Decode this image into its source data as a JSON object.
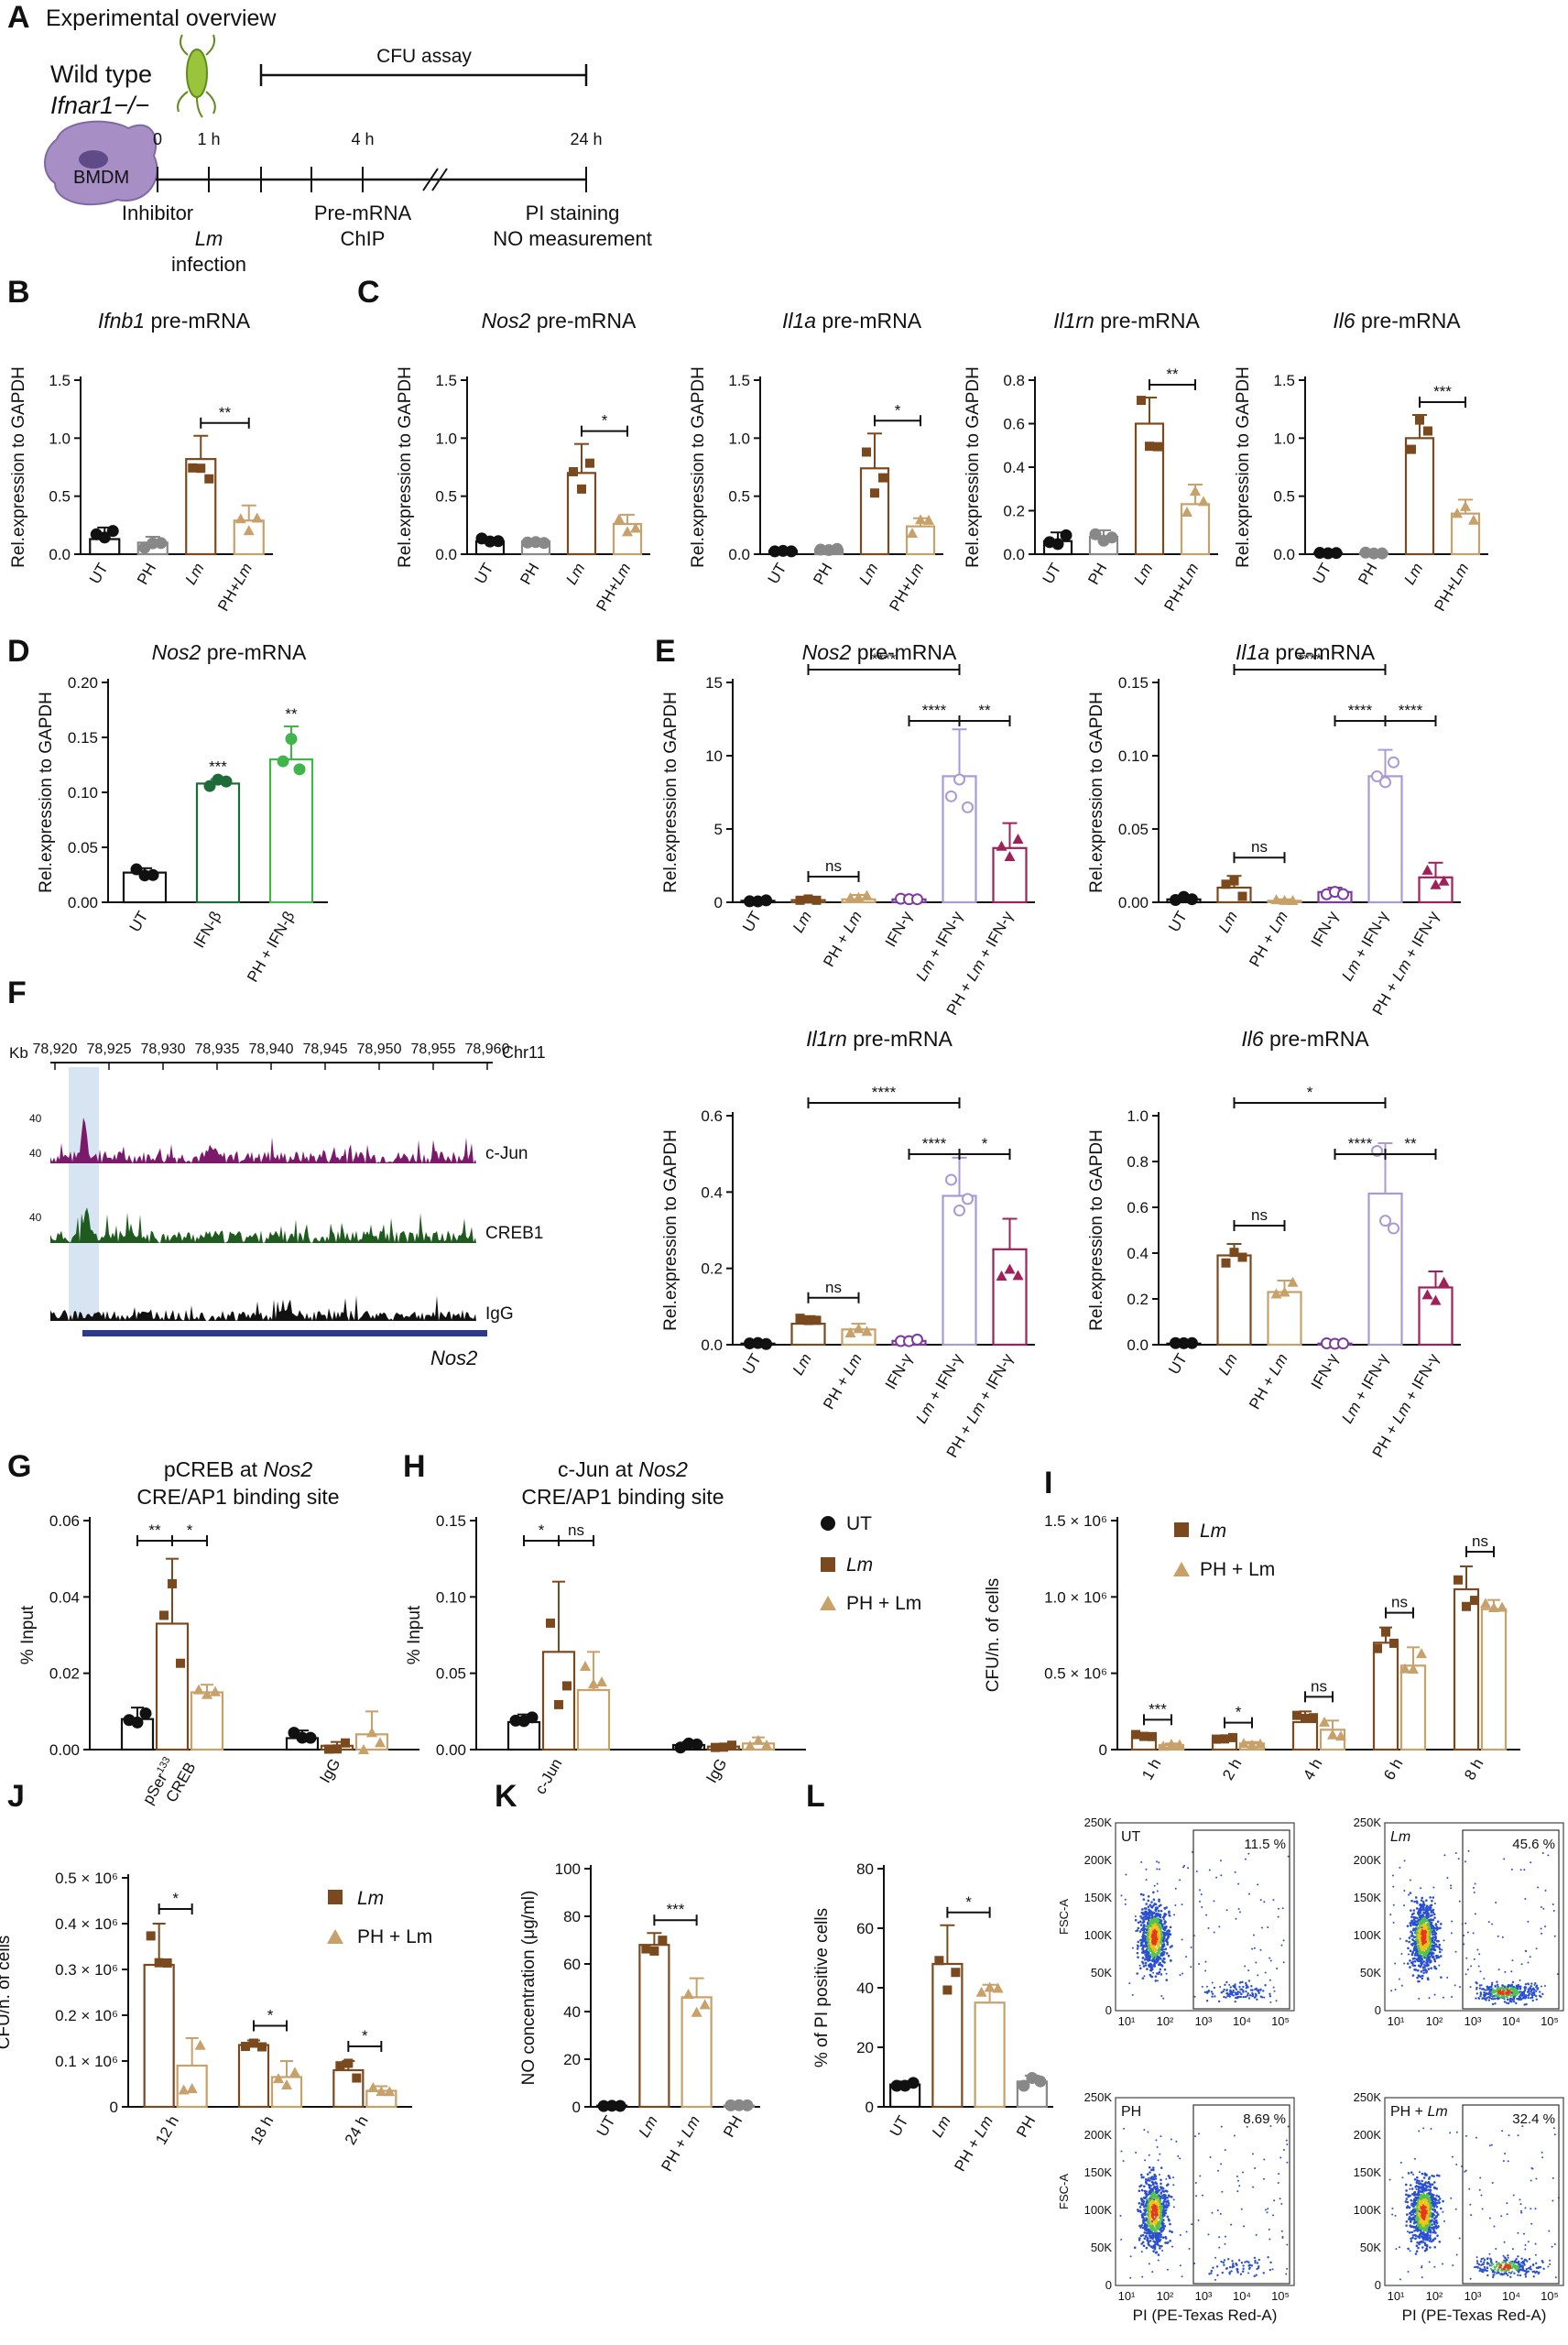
{
  "panels": {
    "A": {
      "letter": "A",
      "title": "Experimental overview",
      "genotype_1": "Wild type",
      "genotype_2": "Ifnar1−/−",
      "cell_label": "BMDM",
      "cfu_label": "CFU assay",
      "timepoints": [
        "0",
        "1 h",
        "4 h",
        "24 h"
      ],
      "inhibitor": "Inhibitor",
      "lm": "Lm",
      "infection": "infection",
      "premrna": "Pre-mRNA",
      "chip": "ChIP",
      "pi": "PI staining",
      "no": "NO measurement"
    },
    "B": {
      "letter": "B"
    },
    "C": {
      "letter": "C"
    },
    "D": {
      "letter": "D"
    },
    "E": {
      "letter": "E"
    },
    "F": {
      "letter": "F",
      "kb": "Kb",
      "chr": "Chr11",
      "coords": [
        "78,920",
        "78,925",
        "78,930",
        "78,935",
        "78,940",
        "78,945",
        "78,950",
        "78,955",
        "78,960"
      ],
      "scale": "40",
      "tracks": [
        "c-Jun",
        "CREB1",
        "IgG"
      ],
      "track_colors": [
        "#7b1a6a",
        "#1f5a1f",
        "#111111"
      ],
      "gene": "Nos2"
    },
    "G": {
      "letter": "G"
    },
    "H": {
      "letter": "H",
      "legend": [
        "UT",
        "Lm",
        "PH + Lm"
      ]
    },
    "I": {
      "letter": "I",
      "legend": [
        "Lm",
        "PH + Lm"
      ]
    },
    "J": {
      "letter": "J",
      "legend": [
        "Lm",
        "PH + Lm"
      ]
    },
    "K": {
      "letter": "K"
    },
    "L": {
      "letter": "L",
      "flow": [
        {
          "label": "UT",
          "pct": "11.5 %"
        },
        {
          "label": "Lm",
          "pct": "45.6 %"
        },
        {
          "label": "PH",
          "pct": "8.69 %"
        },
        {
          "label": "PH + Lm",
          "pct": "32.4 %"
        }
      ],
      "flow_y_ticks": [
        "250K",
        "200K",
        "150K",
        "100K",
        "50K",
        "0"
      ],
      "flow_y_label": "FSC-A",
      "flow_x_label": "PI (PE-Texas Red-A)",
      "flow_x_ticks": [
        "10¹",
        "10²",
        "10³",
        "10⁴",
        "10⁵"
      ]
    }
  },
  "colors": {
    "UT": "#111111",
    "PH": "#888888",
    "Lm": "#7a4a1e",
    "PHLm": "#c8a06a",
    "IFNb": "#1e6b3a",
    "PHIFNb": "#3fb54a",
    "IFNg": "#7b3b9e",
    "LmIFNg": "#a99ad4",
    "PHLmIFNg": "#a0205a"
  },
  "chart_data": [
    {
      "id": "B",
      "type": "bar",
      "title": "Ifnb1 pre-mRNA",
      "ylabel": "Rel.expression to GAPDH",
      "categories": [
        "UT",
        "PH",
        "Lm",
        "PH+Lm"
      ],
      "values": [
        0.13,
        0.1,
        0.82,
        0.29
      ],
      "errors": [
        0.1,
        0.05,
        0.2,
        0.13
      ],
      "ylim": [
        0,
        1.5
      ],
      "yticks": [
        "0.0",
        "0.5",
        "1.0",
        "1.5"
      ],
      "significance": [
        {
          "a": 2,
          "b": 3,
          "label": "**"
        }
      ]
    },
    {
      "id": "C1",
      "type": "bar",
      "title": "Nos2 pre-mRNA",
      "ylabel": "Rel.expression to GAPDH",
      "categories": [
        "UT",
        "PH",
        "Lm",
        "PH+Lm"
      ],
      "values": [
        0.11,
        0.11,
        0.7,
        0.26
      ],
      "errors": [
        0.03,
        0.02,
        0.25,
        0.08
      ],
      "ylim": [
        0,
        1.5
      ],
      "yticks": [
        "0.0",
        "0.5",
        "1.0",
        "1.5"
      ],
      "significance": [
        {
          "a": 2,
          "b": 3,
          "label": "*"
        }
      ]
    },
    {
      "id": "C2",
      "type": "bar",
      "title": "Il1a pre-mRNA",
      "ylabel": "Rel.expression to GAPDH",
      "categories": [
        "UT",
        "PH",
        "Lm",
        "PH+Lm"
      ],
      "values": [
        0.03,
        0.04,
        0.74,
        0.24
      ],
      "errors": [
        0.01,
        0.01,
        0.3,
        0.07
      ],
      "ylim": [
        0,
        1.5
      ],
      "yticks": [
        "0.0",
        "0.5",
        "1.0",
        "1.5"
      ],
      "significance": [
        {
          "a": 2,
          "b": 3,
          "label": "*"
        }
      ]
    },
    {
      "id": "C3",
      "type": "bar",
      "title": "Il1rn pre-mRNA",
      "ylabel": "Rel.expression to GAPDH",
      "categories": [
        "UT",
        "PH",
        "Lm",
        "PH+Lm"
      ],
      "values": [
        0.06,
        0.08,
        0.6,
        0.23
      ],
      "errors": [
        0.04,
        0.03,
        0.12,
        0.09
      ],
      "ylim": [
        0,
        0.8
      ],
      "yticks": [
        "0.0",
        "0.2",
        "0.4",
        "0.6",
        "0.8"
      ],
      "significance": [
        {
          "a": 2,
          "b": 3,
          "label": "**"
        }
      ]
    },
    {
      "id": "C4",
      "type": "bar",
      "title": "Il6 pre-mRNA",
      "ylabel": "Rel.expression to GAPDH",
      "categories": [
        "UT",
        "PH",
        "Lm",
        "PH+Lm"
      ],
      "values": [
        0.01,
        0.01,
        1.0,
        0.35
      ],
      "errors": [
        0.005,
        0.005,
        0.2,
        0.12
      ],
      "ylim": [
        0,
        1.5
      ],
      "yticks": [
        "0.0",
        "0.5",
        "1.0",
        "1.5"
      ],
      "significance": [
        {
          "a": 2,
          "b": 3,
          "label": "***"
        }
      ]
    },
    {
      "id": "D",
      "type": "bar",
      "title": "Nos2 pre-mRNA",
      "ylabel": "Rel.expression to GAPDH",
      "categories": [
        "UT",
        "IFN-β",
        "PH + IFN-β"
      ],
      "values": [
        0.027,
        0.108,
        0.13
      ],
      "errors": [
        0.004,
        0.004,
        0.03
      ],
      "ylim": [
        0,
        0.2
      ],
      "yticks": [
        "0.00",
        "0.05",
        "0.10",
        "0.15",
        "0.20"
      ],
      "stars": [
        "",
        "***",
        "**"
      ]
    },
    {
      "id": "E1",
      "type": "bar",
      "title": "Nos2 pre-mRNA",
      "ylabel": "Rel.expression to GAPDH",
      "categories": [
        "UT",
        "Lm",
        "PH + Lm",
        "IFN-γ",
        "Lm + IFN-γ",
        "PH + Lm + IFN-γ"
      ],
      "values": [
        0.1,
        0.15,
        0.2,
        0.2,
        8.6,
        3.7
      ],
      "errors": [
        0.05,
        0.1,
        0.3,
        0.05,
        3.2,
        1.7
      ],
      "ylim": [
        0,
        15
      ],
      "yticks": [
        "0",
        "5",
        "10",
        "15"
      ],
      "significance": [
        {
          "a": 1,
          "b": 4,
          "label": "****"
        },
        {
          "a": 3,
          "b": 4,
          "label": "****"
        },
        {
          "a": 4,
          "b": 5,
          "label": "**"
        },
        {
          "a": 1,
          "b": 2,
          "label": "ns"
        }
      ]
    },
    {
      "id": "E2",
      "type": "bar",
      "title": "Il1a pre-mRNA",
      "ylabel": "Rel.expression to GAPDH",
      "categories": [
        "UT",
        "Lm",
        "PH + Lm",
        "IFN-γ",
        "Lm + IFN-γ",
        "PH + Lm + IFN-γ"
      ],
      "values": [
        0.002,
        0.01,
        0.001,
        0.007,
        0.086,
        0.017
      ],
      "errors": [
        0.002,
        0.008,
        0.001,
        0.003,
        0.018,
        0.01
      ],
      "ylim": [
        0,
        0.15
      ],
      "yticks": [
        "0.00",
        "0.05",
        "0.10",
        "0.15"
      ],
      "significance": [
        {
          "a": 1,
          "b": 4,
          "label": "****"
        },
        {
          "a": 3,
          "b": 4,
          "label": "****"
        },
        {
          "a": 4,
          "b": 5,
          "label": "****"
        },
        {
          "a": 1,
          "b": 2,
          "label": "ns"
        }
      ]
    },
    {
      "id": "E3",
      "type": "bar",
      "title": "Il1rn pre-mRNA",
      "ylabel": "Rel.expression to GAPDH",
      "categories": [
        "UT",
        "Lm",
        "PH + Lm",
        "IFN-γ",
        "Lm + IFN-γ",
        "PH + Lm + IFN-γ"
      ],
      "values": [
        0.003,
        0.055,
        0.04,
        0.01,
        0.39,
        0.25
      ],
      "errors": [
        0.002,
        0.02,
        0.015,
        0.005,
        0.1,
        0.08
      ],
      "ylim": [
        0,
        0.6
      ],
      "yticks": [
        "0.0",
        "0.2",
        "0.4",
        "0.6"
      ],
      "significance": [
        {
          "a": 1,
          "b": 4,
          "label": "****"
        },
        {
          "a": 3,
          "b": 4,
          "label": "****"
        },
        {
          "a": 4,
          "b": 5,
          "label": "*"
        },
        {
          "a": 1,
          "b": 2,
          "label": "ns"
        }
      ]
    },
    {
      "id": "E4",
      "type": "bar",
      "title": "Il6 pre-mRNA",
      "ylabel": "Rel.expression to GAPDH",
      "categories": [
        "UT",
        "Lm",
        "PH + Lm",
        "IFN-γ",
        "Lm + IFN-γ",
        "PH + Lm + IFN-γ"
      ],
      "values": [
        0.005,
        0.39,
        0.23,
        0.005,
        0.66,
        0.25
      ],
      "errors": [
        0.003,
        0.05,
        0.05,
        0.003,
        0.22,
        0.07
      ],
      "ylim": [
        0,
        1.0
      ],
      "yticks": [
        "0.0",
        "0.2",
        "0.4",
        "0.6",
        "0.8",
        "1.0"
      ],
      "significance": [
        {
          "a": 1,
          "b": 4,
          "label": "*"
        },
        {
          "a": 3,
          "b": 4,
          "label": "****"
        },
        {
          "a": 4,
          "b": 5,
          "label": "**"
        },
        {
          "a": 1,
          "b": 2,
          "label": "ns"
        }
      ]
    },
    {
      "id": "G",
      "type": "bar",
      "title": "pCREB at Nos2",
      "subtitle": "CRE/AP1 binding site",
      "ylabel": "% Input",
      "groups": [
        "pSer133 CREB",
        "IgG"
      ],
      "series": [
        "UT",
        "Lm",
        "PH + Lm"
      ],
      "values": [
        [
          0.008,
          0.033,
          0.015
        ],
        [
          0.003,
          0.001,
          0.004
        ]
      ],
      "errors": [
        [
          0.003,
          0.017,
          0.002
        ],
        [
          0.002,
          0.001,
          0.006
        ]
      ],
      "ylim": [
        0,
        0.06
      ],
      "yticks": [
        "0.00",
        "0.02",
        "0.04",
        "0.06"
      ],
      "significance": [
        {
          "g": 0,
          "a": 0,
          "b": 1,
          "label": "**"
        },
        {
          "g": 0,
          "a": 1,
          "b": 2,
          "label": "*"
        }
      ]
    },
    {
      "id": "H",
      "type": "bar",
      "title": "c-Jun at Nos2",
      "subtitle": "CRE/AP1 binding site",
      "ylabel": "% Input",
      "groups": [
        "c-Jun",
        "IgG"
      ],
      "series": [
        "UT",
        "Lm",
        "PH + Lm"
      ],
      "values": [
        [
          0.018,
          0.064,
          0.039
        ],
        [
          0.003,
          0.002,
          0.004
        ]
      ],
      "errors": [
        [
          0.005,
          0.046,
          0.025
        ],
        [
          0.002,
          0.001,
          0.004
        ]
      ],
      "ylim": [
        0,
        0.15
      ],
      "yticks": [
        "0.00",
        "0.05",
        "0.10",
        "0.15"
      ],
      "significance": [
        {
          "g": 0,
          "a": 0,
          "b": 1,
          "label": "*"
        },
        {
          "g": 0,
          "a": 1,
          "b": 2,
          "label": "ns"
        }
      ]
    },
    {
      "id": "I",
      "type": "bar",
      "ylabel": "CFU/n. of cells",
      "groups": [
        "1 h",
        "2 h",
        "4 h",
        "6 h",
        "8 h"
      ],
      "series": [
        "Lm",
        "PH + Lm"
      ],
      "values": [
        [
          0.09,
          0.03
        ],
        [
          0.07,
          0.04
        ],
        [
          0.18,
          0.13
        ],
        [
          0.7,
          0.55
        ],
        [
          1.05,
          0.92
        ]
      ],
      "errors": [
        [
          0.01,
          0.01
        ],
        [
          0.01,
          0.01
        ],
        [
          0.07,
          0.06
        ],
        [
          0.1,
          0.12
        ],
        [
          0.15,
          0.06
        ]
      ],
      "ylim": [
        0,
        1.5
      ],
      "yticks": [
        "0",
        "0.5 × 10⁶",
        "1.0 × 10⁶",
        "1.5 × 10⁶"
      ],
      "significance": [
        {
          "g": 0,
          "label": "***"
        },
        {
          "g": 1,
          "label": "*"
        },
        {
          "g": 2,
          "label": "ns"
        },
        {
          "g": 3,
          "label": "ns"
        },
        {
          "g": 4,
          "label": "ns"
        }
      ]
    },
    {
      "id": "J",
      "type": "bar",
      "ylabel": "CFU/n. of cells",
      "groups": [
        "12 h",
        "18 h",
        "24 h"
      ],
      "series": [
        "Lm",
        "PH + Lm"
      ],
      "values": [
        [
          0.31,
          0.09
        ],
        [
          0.135,
          0.065
        ],
        [
          0.08,
          0.035
        ]
      ],
      "errors": [
        [
          0.09,
          0.06
        ],
        [
          0.01,
          0.035
        ],
        [
          0.02,
          0.01
        ]
      ],
      "ylim": [
        0,
        0.5
      ],
      "yticks": [
        "0",
        "0.1 × 10⁶",
        "0.2 × 10⁶",
        "0.3 × 10⁶",
        "0.4 × 10⁶",
        "0.5 × 10⁶"
      ],
      "significance": [
        {
          "g": 0,
          "label": "*"
        },
        {
          "g": 1,
          "label": "*"
        },
        {
          "g": 2,
          "label": "*"
        }
      ]
    },
    {
      "id": "K",
      "type": "bar",
      "ylabel": "NO concentration (μg/ml)",
      "categories": [
        "UT",
        "Lm",
        "PH + Lm",
        "PH"
      ],
      "values": [
        0.5,
        68,
        46,
        0.5
      ],
      "errors": [
        0.2,
        5,
        8,
        0.2
      ],
      "ylim": [
        0,
        100
      ],
      "yticks": [
        "0",
        "20",
        "40",
        "60",
        "80",
        "100"
      ],
      "significance": [
        {
          "a": 1,
          "b": 2,
          "label": "***"
        }
      ]
    },
    {
      "id": "L",
      "type": "bar",
      "ylabel": "% of PI positive cells",
      "categories": [
        "UT",
        "Lm",
        "PH + Lm",
        "PH"
      ],
      "values": [
        7.5,
        48,
        35,
        8.5
      ],
      "errors": [
        1,
        13,
        6,
        2
      ],
      "ylim": [
        0,
        80
      ],
      "yticks": [
        "0",
        "20",
        "40",
        "60",
        "80"
      ],
      "significance": [
        {
          "a": 1,
          "b": 2,
          "label": "*"
        }
      ]
    }
  ]
}
